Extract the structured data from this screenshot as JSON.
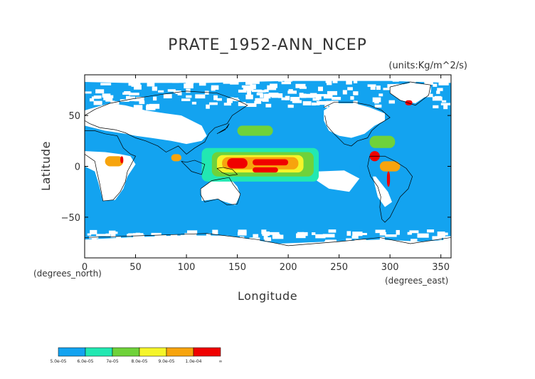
{
  "chart_data": {
    "type": "heatmap",
    "title": "PRATE_1952-ANN_NCEP",
    "units_label": "(units:Kg/m^2/s)",
    "xlabel": "Longitude",
    "ylabel": "Latitude",
    "x_unit_label": "(degrees_east)",
    "y_unit_label": "(degrees_north)",
    "xlim": [
      0,
      360
    ],
    "ylim": [
      -90,
      90
    ],
    "x_ticks": [
      0,
      50,
      100,
      150,
      200,
      250,
      300,
      350
    ],
    "y_ticks": [
      -50,
      0,
      50
    ],
    "grid": false,
    "colorbar": {
      "placement": "bottom-left",
      "bins": [
        {
          "lower": "5.0e-05",
          "color": "#13a3f0"
        },
        {
          "lower": "6.0e-05",
          "color": "#22e8b2"
        },
        {
          "lower": "7e-05",
          "color": "#6fd23a"
        },
        {
          "lower": "8.0e-05",
          "color": "#f5f52a"
        },
        {
          "lower": "9.0e-05",
          "color": "#f7a40d"
        },
        {
          "lower": "1.0e-04",
          "color": "#f00000"
        }
      ],
      "top_label": "∞"
    },
    "colors": {
      "below_lowest_bin": "#ffffff",
      "coastline": "#000000"
    },
    "regions": [
      {
        "level": 0,
        "lon": [
          270,
          300
        ],
        "lat": [
          -10,
          5
        ]
      },
      {
        "level": 1,
        "lon": [
          115,
          230
        ],
        "lat": [
          -15,
          18
        ]
      },
      {
        "level": 2,
        "lon": [
          125,
          225
        ],
        "lat": [
          -10,
          14
        ]
      },
      {
        "level": 3,
        "lon": [
          130,
          215
        ],
        "lat": [
          -6,
          11
        ]
      },
      {
        "level": 4,
        "lon": [
          135,
          210
        ],
        "lat": [
          -3,
          9
        ]
      },
      {
        "level": 5,
        "lon": [
          140,
          160
        ],
        "lat": [
          -2,
          8
        ]
      },
      {
        "level": 5,
        "lon": [
          165,
          200
        ],
        "lat": [
          1,
          7
        ]
      },
      {
        "level": 5,
        "lon": [
          165,
          190
        ],
        "lat": [
          -6,
          -1
        ]
      },
      {
        "level": 2,
        "lon": [
          150,
          185
        ],
        "lat": [
          30,
          40
        ]
      },
      {
        "level": 5,
        "lon": [
          280,
          290
        ],
        "lat": [
          5,
          15
        ]
      },
      {
        "level": 4,
        "lon": [
          290,
          310
        ],
        "lat": [
          -5,
          5
        ]
      },
      {
        "level": 5,
        "lon": [
          297,
          300
        ],
        "lat": [
          -20,
          -5
        ]
      },
      {
        "level": 4,
        "lon": [
          20,
          38
        ],
        "lat": [
          0,
          10
        ]
      },
      {
        "level": 5,
        "lon": [
          35,
          38
        ],
        "lat": [
          3,
          10
        ]
      },
      {
        "level": 4,
        "lon": [
          85,
          95
        ],
        "lat": [
          5,
          12
        ]
      },
      {
        "level": 2,
        "lon": [
          280,
          305
        ],
        "lat": [
          18,
          30
        ]
      },
      {
        "level": 5,
        "lon": [
          315,
          322
        ],
        "lat": [
          60,
          65
        ]
      }
    ]
  }
}
